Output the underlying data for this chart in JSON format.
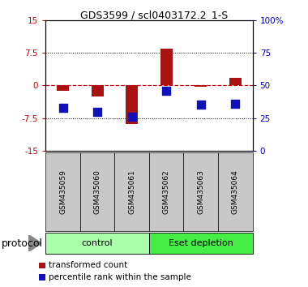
{
  "title": "GDS3599 / scl0403172.2_1-S",
  "samples": [
    "GSM435059",
    "GSM435060",
    "GSM435061",
    "GSM435062",
    "GSM435063",
    "GSM435064"
  ],
  "transformed_count": [
    -1.2,
    -2.5,
    -8.8,
    8.5,
    -0.3,
    1.8
  ],
  "percentile_rank": [
    33,
    30,
    26,
    46,
    35,
    36
  ],
  "groups": [
    {
      "label": "control",
      "n": 3,
      "color": "#aaffaa"
    },
    {
      "label": "Eset depletion",
      "n": 3,
      "color": "#44ee44"
    }
  ],
  "ylim_left": [
    -15,
    15
  ],
  "ylim_right": [
    0,
    100
  ],
  "yticks_left": [
    -15,
    -7.5,
    0,
    7.5,
    15
  ],
  "yticks_right": [
    0,
    25,
    50,
    75,
    100
  ],
  "ytick_labels_left": [
    "-15",
    "-7.5",
    "0",
    "7.5",
    "15"
  ],
  "ytick_labels_right": [
    "0",
    "25",
    "50",
    "75",
    "100%"
  ],
  "bar_color": "#aa1111",
  "dot_color": "#1111bb",
  "zero_line_color": "#cc0000",
  "bg_color": "#ffffff",
  "sample_box_color": "#c8c8c8",
  "bar_width": 0.35,
  "dot_size": 45,
  "legend_red_label": "transformed count",
  "legend_blue_label": "percentile rank within the sample",
  "protocol_label": "protocol",
  "title_fontsize": 9,
  "axis_fontsize": 7.5,
  "sample_fontsize": 6.5,
  "legend_fontsize": 7.5,
  "protocol_fontsize": 9
}
